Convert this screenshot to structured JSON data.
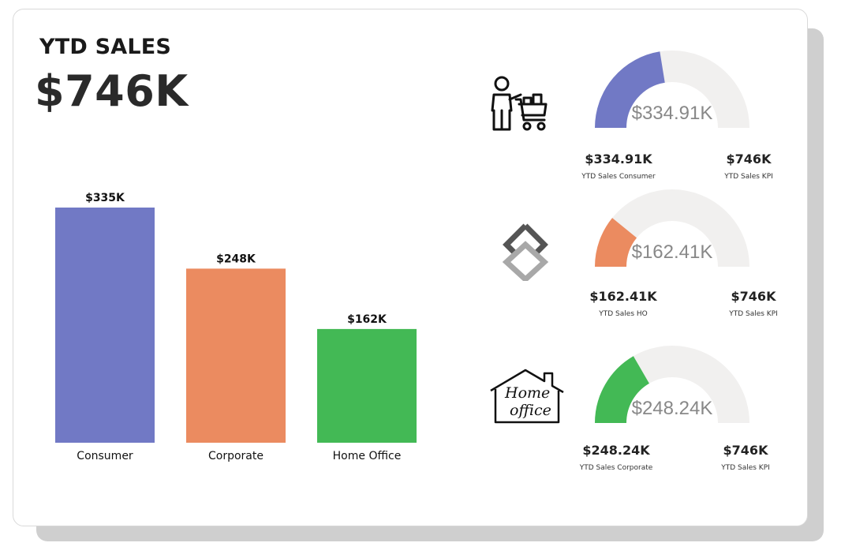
{
  "header": {
    "title": "YTD SALES",
    "value": "$746K"
  },
  "chart_data": {
    "type": "bar",
    "categories": [
      "Consumer",
      "Corporate",
      "Home Office"
    ],
    "values": [
      335,
      248,
      162
    ],
    "value_labels": [
      "$335K",
      "$248K",
      "$162K"
    ],
    "colors": [
      "#7179c5",
      "#eb8b60",
      "#43b955"
    ],
    "unit": "K USD",
    "grid": false
  },
  "gauges": [
    {
      "center_label": "$334.91K",
      "value": 334.91,
      "max": 746,
      "color": "#7179c5",
      "left_value": "$334.91K",
      "left_label": "YTD Sales Consumer",
      "right_value": "$746K",
      "right_label": "YTD Sales KPI",
      "icon": "shopper-cart-icon"
    },
    {
      "center_label": "$162.41K",
      "value": 162.41,
      "max": 746,
      "color": "#eb8b60",
      "left_value": "$162.41K",
      "left_label": "YTD Sales HO",
      "right_value": "$746K",
      "right_label": "YTD Sales KPI",
      "icon": "diamond-logo-icon"
    },
    {
      "center_label": "$248.24K",
      "value": 248.24,
      "max": 746,
      "color": "#43b955",
      "left_value": "$248.24K",
      "left_label": "YTD Sales Corporate",
      "right_value": "$746K",
      "right_label": "YTD Sales KPI",
      "icon": "home-office-icon",
      "icon_text_line1": "Home",
      "icon_text_line2": "office"
    }
  ],
  "colors": {
    "gauge_track": "#f1f0ef",
    "text_dark": "#1a1a1a"
  }
}
